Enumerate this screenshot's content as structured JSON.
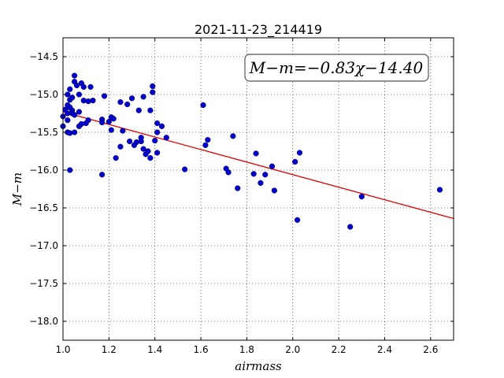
{
  "chart_data": {
    "type": "scatter",
    "title": "2021-11-23_214419",
    "xlabel": "airmass",
    "ylabel": "M−m",
    "xlim": [
      1.0,
      2.7
    ],
    "ylim": [
      -18.25,
      -14.25
    ],
    "y_inverted": true,
    "grid": true,
    "grid_style": "dotted",
    "xticks": [
      1.0,
      1.2,
      1.4,
      1.6,
      1.8,
      2.0,
      2.2,
      2.4,
      2.6
    ],
    "xtick_labels": [
      "1.0",
      "1.2",
      "1.4",
      "1.6",
      "1.8",
      "2.0",
      "2.2",
      "2.4",
      "2.6"
    ],
    "yticks": [
      -14.5,
      -15.0,
      -15.5,
      -16.0,
      -16.5,
      -17.0,
      -17.5,
      -18.0
    ],
    "ytick_labels": [
      "−14.5",
      "−15.0",
      "−15.5",
      "−16.0",
      "−16.5",
      "−17.0",
      "−17.5",
      "−18.0"
    ],
    "marker_color": "#0000cc",
    "fit_color": "#dd0000",
    "fit": {
      "slope": -0.83,
      "intercept": -14.4,
      "label": "M−m=−0.83χ−14.40"
    },
    "points": [
      [
        1.0,
        -15.29
      ],
      [
        1.0,
        -15.42
      ],
      [
        1.01,
        -15.2
      ],
      [
        1.02,
        -15.0
      ],
      [
        1.02,
        -15.14
      ],
      [
        1.02,
        -15.25
      ],
      [
        1.02,
        -15.34
      ],
      [
        1.02,
        -15.5
      ],
      [
        1.03,
        -14.93
      ],
      [
        1.03,
        -15.07
      ],
      [
        1.03,
        -15.17
      ],
      [
        1.03,
        -15.51
      ],
      [
        1.03,
        -16.0
      ],
      [
        1.04,
        -15.04
      ],
      [
        1.04,
        -15.21
      ],
      [
        1.04,
        -15.25
      ],
      [
        1.05,
        -14.75
      ],
      [
        1.05,
        -15.27
      ],
      [
        1.05,
        -15.5
      ],
      [
        1.05,
        -14.83
      ],
      [
        1.06,
        -14.88
      ],
      [
        1.07,
        -15.0
      ],
      [
        1.07,
        -15.23
      ],
      [
        1.07,
        -15.42
      ],
      [
        1.08,
        -14.85
      ],
      [
        1.08,
        -15.39
      ],
      [
        1.09,
        -14.9
      ],
      [
        1.09,
        -15.08
      ],
      [
        1.1,
        -15.38
      ],
      [
        1.11,
        -15.09
      ],
      [
        1.11,
        -15.34
      ],
      [
        1.12,
        -14.9
      ],
      [
        1.13,
        -15.08
      ],
      [
        1.17,
        -15.33
      ],
      [
        1.17,
        -15.37
      ],
      [
        1.17,
        -16.06
      ],
      [
        1.18,
        -15.02
      ],
      [
        1.2,
        -15.36
      ],
      [
        1.21,
        -15.3
      ],
      [
        1.21,
        -15.47
      ],
      [
        1.22,
        -15.32
      ],
      [
        1.23,
        -15.84
      ],
      [
        1.25,
        -15.1
      ],
      [
        1.25,
        -15.69
      ],
      [
        1.26,
        -15.48
      ],
      [
        1.28,
        -15.13
      ],
      [
        1.29,
        -15.62
      ],
      [
        1.3,
        -15.05
      ],
      [
        1.31,
        -15.67
      ],
      [
        1.32,
        -15.63
      ],
      [
        1.33,
        -15.21
      ],
      [
        1.34,
        -15.57
      ],
      [
        1.34,
        -15.62
      ],
      [
        1.35,
        -15.03
      ],
      [
        1.35,
        -15.72
      ],
      [
        1.36,
        -15.79
      ],
      [
        1.37,
        -15.75
      ],
      [
        1.38,
        -15.21
      ],
      [
        1.38,
        -15.84
      ],
      [
        1.39,
        -14.89
      ],
      [
        1.39,
        -14.97
      ],
      [
        1.4,
        -15.61
      ],
      [
        1.41,
        -15.38
      ],
      [
        1.41,
        -15.5
      ],
      [
        1.41,
        -15.77
      ],
      [
        1.43,
        -15.42
      ],
      [
        1.45,
        -15.57
      ],
      [
        1.53,
        -15.99
      ],
      [
        1.61,
        -15.14
      ],
      [
        1.62,
        -15.67
      ],
      [
        1.63,
        -15.6
      ],
      [
        1.71,
        -15.98
      ],
      [
        1.72,
        -16.03
      ],
      [
        1.74,
        -15.55
      ],
      [
        1.76,
        -16.24
      ],
      [
        1.83,
        -16.05
      ],
      [
        1.84,
        -15.78
      ],
      [
        1.86,
        -16.17
      ],
      [
        1.88,
        -16.06
      ],
      [
        1.91,
        -15.95
      ],
      [
        1.92,
        -16.27
      ],
      [
        2.01,
        -15.89
      ],
      [
        2.02,
        -16.66
      ],
      [
        2.03,
        -15.77
      ],
      [
        2.25,
        -16.75
      ],
      [
        2.3,
        -16.35
      ],
      [
        2.64,
        -16.26
      ]
    ]
  }
}
